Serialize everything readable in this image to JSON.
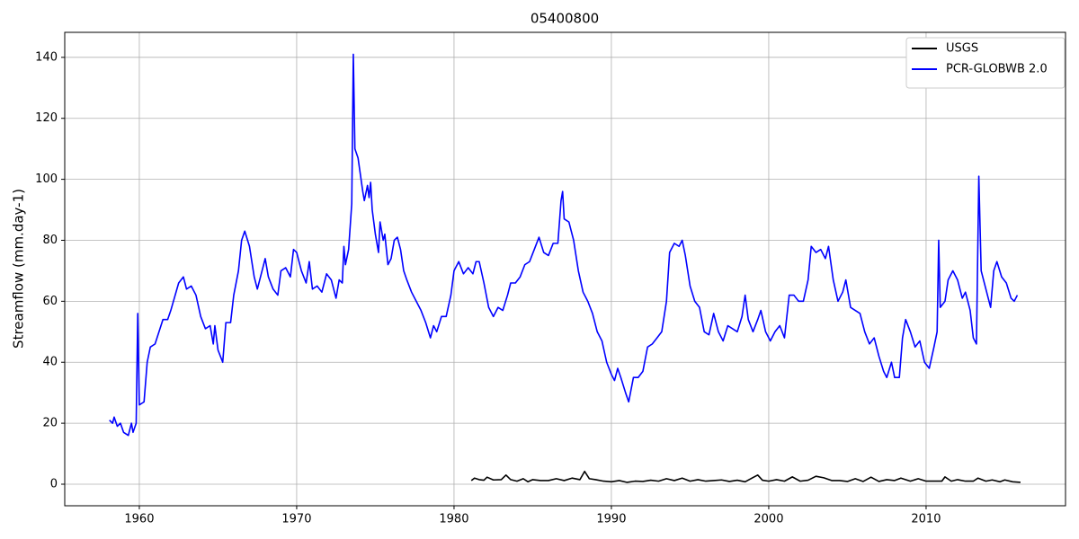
{
  "chart_data": {
    "type": "line",
    "title": "05400800",
    "ylabel": "Streamflow (mm.day-1)",
    "xlim": [
      1955.26,
      2018.86
    ],
    "ylim": [
      -7.07,
      148.2
    ],
    "xticks": [
      1960,
      1970,
      1980,
      1990,
      2000,
      2010
    ],
    "yticks": [
      0,
      20,
      40,
      60,
      80,
      100,
      120,
      140
    ],
    "grid": true,
    "legend": "upper right",
    "series": [
      {
        "name": "USGS",
        "color": "#000000",
        "x": [
          1981.1,
          1981.3,
          1981.6,
          1981.9,
          1982.1,
          1982.5,
          1983.0,
          1983.3,
          1983.6,
          1984.0,
          1984.4,
          1984.7,
          1985.0,
          1985.5,
          1986.0,
          1986.5,
          1987.0,
          1987.5,
          1988.0,
          1988.3,
          1988.6,
          1989.0,
          1989.5,
          1990.0,
          1990.5,
          1991.0,
          1991.5,
          1992.0,
          1992.5,
          1993.0,
          1993.5,
          1994.0,
          1994.5,
          1995.0,
          1995.5,
          1996.0,
          1996.5,
          1997.0,
          1997.5,
          1998.0,
          1998.5,
          1999.0,
          1999.3,
          1999.6,
          2000.0,
          2000.5,
          2001.0,
          2001.5,
          2002.0,
          2002.5,
          2003.0,
          2003.5,
          2004.0,
          2004.5,
          2005.0,
          2005.5,
          2006.0,
          2006.5,
          2007.0,
          2007.5,
          2008.0,
          2008.4,
          2009.0,
          2009.5,
          2010.0,
          2010.5,
          2011.0,
          2011.2,
          2011.6,
          2012.0,
          2012.5,
          2013.0,
          2013.3,
          2013.8,
          2014.2,
          2014.7,
          2015.0,
          2015.5,
          2016.0
        ],
        "values": [
          1.2,
          2,
          1.5,
          1.3,
          2.3,
          1.4,
          1.5,
          3,
          1.5,
          1,
          1.8,
          0.8,
          1.5,
          1.2,
          1.2,
          1.8,
          1.2,
          2.0,
          1.5,
          4.2,
          1.8,
          1.5,
          1,
          0.8,
          1.2,
          0.6,
          1,
          0.9,
          1.3,
          1.0,
          1.8,
          1.2,
          2.0,
          1.0,
          1.5,
          1,
          1.2,
          1.4,
          0.9,
          1.3,
          0.8,
          2.2,
          3,
          1.3,
          1,
          1.5,
          1,
          2.4,
          1.0,
          1.3,
          2.6,
          2.1,
          1.2,
          1.2,
          0.9,
          1.8,
          0.9,
          2.3,
          0.9,
          1.5,
          1.2,
          2.0,
          1.0,
          1.8,
          1.0,
          1.0,
          1.0,
          2.4,
          1.0,
          1.5,
          1.0,
          1.0,
          2.0,
          1.0,
          1.4,
          0.8,
          1.4,
          0.8,
          0.6
        ]
      },
      {
        "name": "PCR-GLOBWB 2.0",
        "color": "#0000ff",
        "x": [
          1958.1,
          1958.3,
          1958.4,
          1958.6,
          1958.8,
          1959.0,
          1959.3,
          1959.5,
          1959.6,
          1959.8,
          1959.9,
          1960.0,
          1960.3,
          1960.5,
          1960.7,
          1961.0,
          1961.5,
          1961.8,
          1962.0,
          1962.5,
          1962.8,
          1963.0,
          1963.3,
          1963.6,
          1963.9,
          1964.2,
          1964.5,
          1964.7,
          1964.8,
          1965.0,
          1965.3,
          1965.5,
          1965.8,
          1966.0,
          1966.3,
          1966.5,
          1966.7,
          1967.0,
          1967.3,
          1967.5,
          1967.8,
          1968.0,
          1968.2,
          1968.5,
          1968.8,
          1969.0,
          1969.3,
          1969.6,
          1969.8,
          1970.0,
          1970.3,
          1970.6,
          1970.8,
          1971.0,
          1971.3,
          1971.6,
          1971.9,
          1972.2,
          1972.5,
          1972.7,
          1972.9,
          1973.0,
          1973.1,
          1973.3,
          1973.5,
          1973.6,
          1973.7,
          1973.9,
          1974.2,
          1974.3,
          1974.5,
          1974.6,
          1974.7,
          1974.8,
          1975.0,
          1975.2,
          1975.3,
          1975.5,
          1975.6,
          1975.8,
          1976.0,
          1976.2,
          1976.4,
          1976.6,
          1976.8,
          1977.0,
          1977.3,
          1977.6,
          1977.9,
          1978.2,
          1978.5,
          1978.7,
          1978.9,
          1979.2,
          1979.5,
          1979.8,
          1980.0,
          1980.3,
          1980.6,
          1980.9,
          1981.2,
          1981.4,
          1981.6,
          1981.9,
          1982.2,
          1982.5,
          1982.8,
          1983.1,
          1983.4,
          1983.6,
          1983.9,
          1984.2,
          1984.5,
          1984.8,
          1985.1,
          1985.4,
          1985.7,
          1986.0,
          1986.3,
          1986.6,
          1986.8,
          1986.9,
          1987.0,
          1987.3,
          1987.6,
          1987.9,
          1988.2,
          1988.5,
          1988.8,
          1989.1,
          1989.4,
          1989.7,
          1990.0,
          1990.2,
          1990.4,
          1990.6,
          1990.9,
          1991.1,
          1991.4,
          1991.7,
          1992.0,
          1992.3,
          1992.6,
          1992.9,
          1993.2,
          1993.5,
          1993.7,
          1994.0,
          1994.3,
          1994.5,
          1994.7,
          1995.0,
          1995.3,
          1995.6,
          1995.9,
          1996.2,
          1996.5,
          1996.8,
          1997.1,
          1997.4,
          1997.7,
          1998.0,
          1998.3,
          1998.5,
          1998.7,
          1999.0,
          1999.3,
          1999.5,
          1999.8,
          2000.1,
          2000.4,
          2000.7,
          2001.0,
          2001.3,
          2001.6,
          2001.9,
          2002.2,
          2002.5,
          2002.7,
          2003.0,
          2003.3,
          2003.6,
          2003.8,
          2004.1,
          2004.4,
          2004.7,
          2004.9,
          2005.2,
          2005.5,
          2005.8,
          2006.1,
          2006.4,
          2006.7,
          2007.0,
          2007.3,
          2007.5,
          2007.8,
          2008.0,
          2008.3,
          2008.5,
          2008.7,
          2009.0,
          2009.3,
          2009.6,
          2009.9,
          2010.2,
          2010.5,
          2010.7,
          2010.8,
          2010.9,
          2011.2,
          2011.4,
          2011.7,
          2012.0,
          2012.3,
          2012.5,
          2012.8,
          2013.0,
          2013.2,
          2013.35,
          2013.5,
          2013.8,
          2014.1,
          2014.3,
          2014.5,
          2014.8,
          2015.1,
          2015.4,
          2015.6,
          2015.8
        ],
        "values": [
          21,
          20,
          22,
          19,
          20,
          17,
          16,
          20,
          17,
          20,
          56,
          26,
          27,
          40,
          45,
          46,
          54,
          54,
          57,
          66,
          68,
          64,
          65,
          62,
          55,
          51,
          52,
          46,
          52,
          44,
          40,
          53,
          53,
          62,
          70,
          80,
          83,
          78,
          68,
          64,
          70,
          74,
          68,
          64,
          62,
          70,
          71,
          68,
          77,
          76,
          70,
          66,
          73,
          64,
          65,
          63,
          69,
          67,
          61,
          67,
          66,
          78,
          72,
          77,
          92,
          141,
          110,
          107,
          96,
          93,
          98,
          94,
          99,
          90,
          82,
          76,
          86,
          80,
          82,
          72,
          74,
          80,
          81,
          77,
          70,
          67,
          63,
          60,
          57,
          53,
          48,
          52,
          50,
          55,
          55,
          62,
          70,
          73,
          69,
          71,
          69,
          73,
          73,
          66,
          58,
          55,
          58,
          57,
          62,
          66,
          66,
          68,
          72,
          73,
          77,
          81,
          76,
          75,
          79,
          79,
          93,
          96,
          87,
          86,
          80,
          70,
          63,
          60,
          56,
          50,
          47,
          40,
          36,
          34,
          38,
          35,
          30,
          27,
          35,
          35,
          37,
          45,
          46,
          48,
          50,
          60,
          76,
          79,
          78,
          80,
          75,
          65,
          60,
          58,
          50,
          49,
          56,
          50,
          47,
          52,
          51,
          50,
          55,
          62,
          54,
          50,
          54,
          57,
          50,
          47,
          50,
          52,
          48,
          62,
          62,
          60,
          60,
          67,
          78,
          76,
          77,
          74,
          78,
          67,
          60,
          63,
          67,
          58,
          57,
          56,
          50,
          46,
          48,
          42,
          37,
          35,
          40,
          35,
          35,
          48,
          54,
          50,
          45,
          47,
          40,
          38,
          45,
          50,
          80,
          58,
          60,
          67,
          70,
          67,
          61,
          63,
          57,
          48,
          46,
          101,
          70,
          64,
          58,
          70,
          73,
          68,
          66,
          61,
          60,
          62
        ]
      }
    ]
  }
}
